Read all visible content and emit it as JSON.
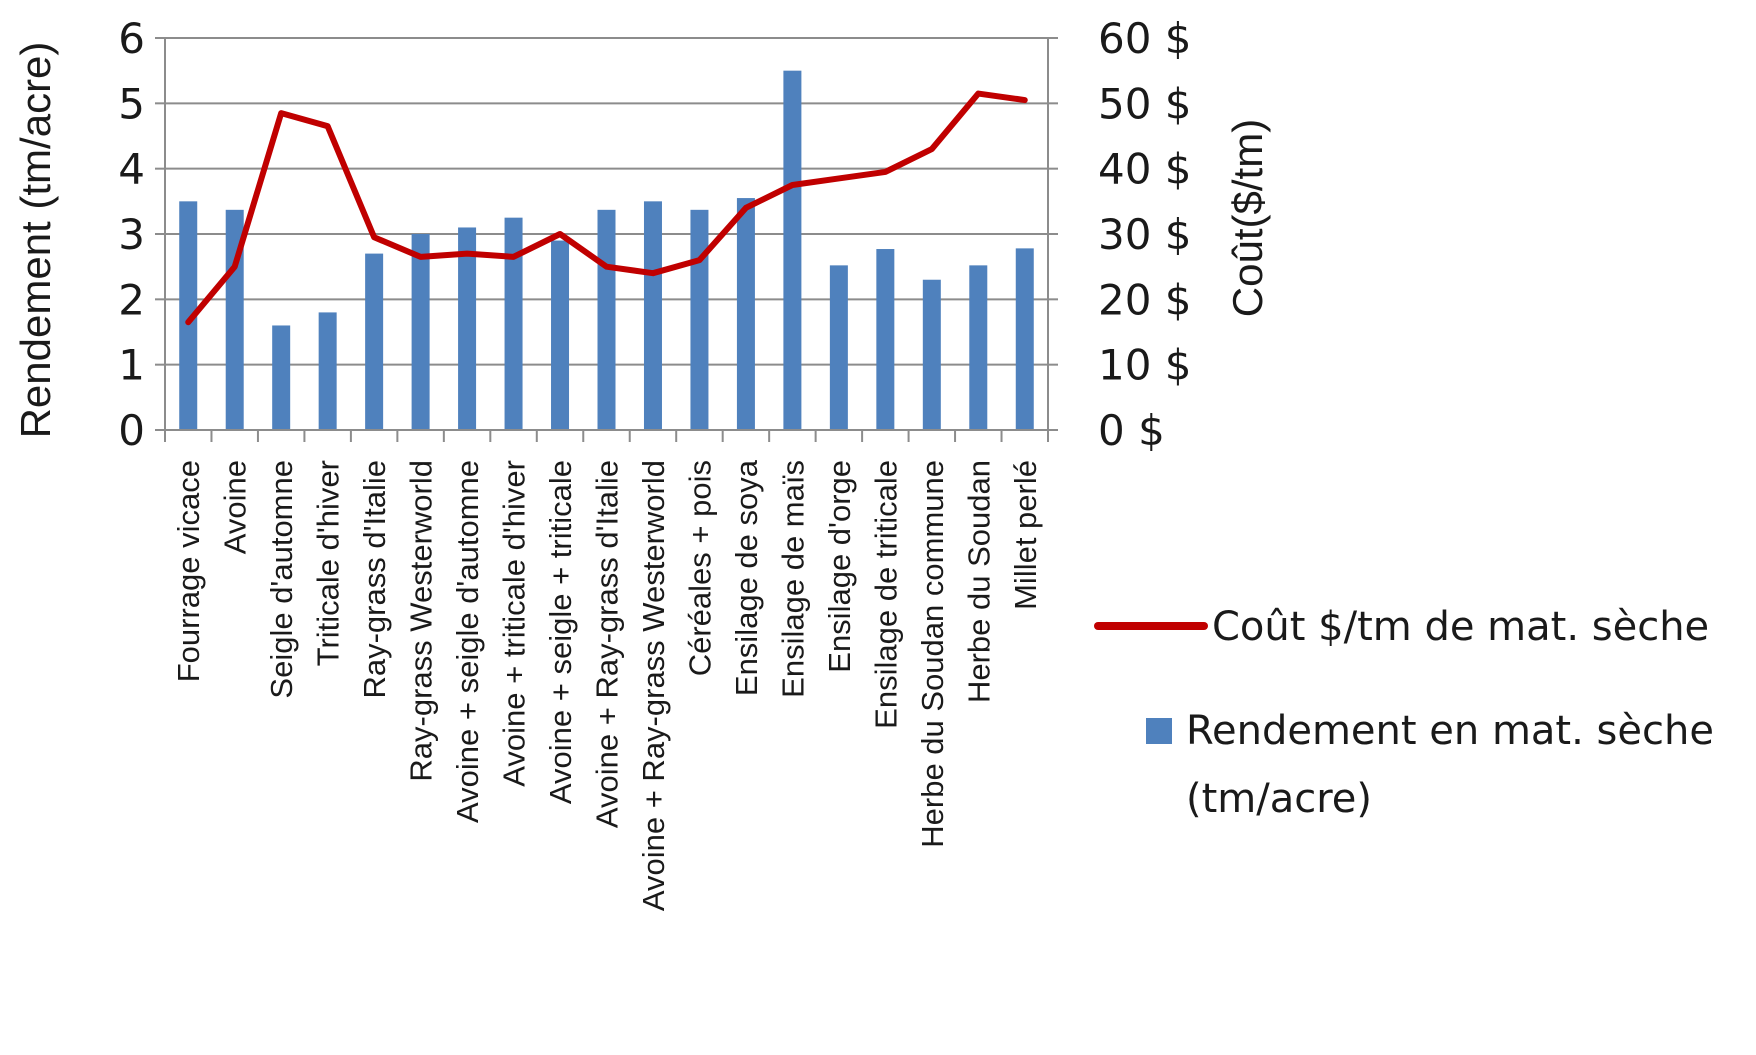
{
  "chart_data": {
    "type": "bar",
    "categories": [
      "Fourrage vicace",
      "Avoine",
      "Seigle d'automne",
      "Triticale d'hiver",
      "Ray-grass d'Italie",
      "Ray-grass Westerworld",
      "Avoine + seigle d'automne",
      "Avoine + triticale d'hiver",
      "Avoine + seigle + triticale",
      "Avoine + Ray-grass d'Italie",
      "Avoine + Ray-grass Westerworld",
      "Céréales + pois",
      "Ensilage de soya",
      "Ensilage de maïs",
      "Ensilage d'orge",
      "Ensilage de triticale",
      "Herbe du Soudan commune",
      "Herbe du Soudan",
      "Millet perlé"
    ],
    "series": [
      {
        "name": "Rendement en mat. sèche (tm/acre)",
        "type": "bar",
        "axis": "left",
        "color": "#4f81bd",
        "values": [
          3.5,
          3.37,
          1.6,
          1.8,
          2.7,
          3.0,
          3.1,
          3.25,
          2.9,
          3.37,
          3.5,
          3.37,
          3.55,
          5.5,
          2.52,
          2.77,
          2.3,
          2.52,
          2.78
        ]
      },
      {
        "name": "Coût $/tm de mat. sèche",
        "type": "line",
        "axis": "right",
        "color": "#c00000",
        "values": [
          16.5,
          25,
          48.5,
          46.5,
          29.5,
          26.5,
          27,
          26.5,
          30,
          25,
          24,
          26,
          34,
          37.5,
          38.5,
          39.5,
          43,
          51.5,
          50.5
        ]
      }
    ],
    "ylabel": "Rendement (tm/acre)",
    "ylabel_right": "Coût($/tm)",
    "ylim": [
      0,
      6
    ],
    "ylim_right": [
      0,
      60
    ],
    "yticks": [
      "0",
      "1",
      "2",
      "3",
      "4",
      "5",
      "6"
    ],
    "yticks_right": [
      "0 $",
      "10 $",
      "20 $",
      "30 $",
      "40 $",
      "50 $",
      "60 $"
    ],
    "legend": {
      "position": "right",
      "line_label": "Coût $/tm de mat. sèche",
      "bar_label_line1": "Rendement en mat. sèche",
      "bar_label_line2": "(tm/acre)"
    },
    "grid": true
  }
}
